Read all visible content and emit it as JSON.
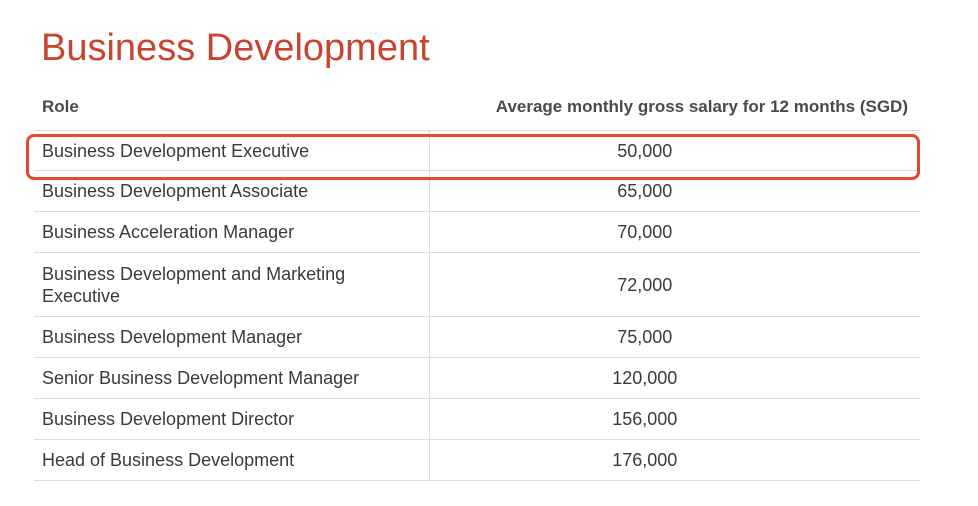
{
  "title": "Business Development",
  "table": {
    "headers": {
      "role": "Role",
      "salary": "Average monthly gross salary for 12 months (SGD)"
    },
    "rows": [
      {
        "role": "Business Development Executive",
        "salary": "50,000",
        "highlighted": true
      },
      {
        "role": "Business Development Associate",
        "salary": "65,000"
      },
      {
        "role": "Business Acceleration Manager",
        "salary": "70,000"
      },
      {
        "role": "Business Development and Marketing Executive",
        "salary": "72,000"
      },
      {
        "role": "Business Development Manager",
        "salary": "75,000"
      },
      {
        "role": "Senior Business Development Manager",
        "salary": "120,000"
      },
      {
        "role": "Business Development Director",
        "salary": "156,000"
      },
      {
        "role": "Head of Business Development",
        "salary": "176,000"
      }
    ]
  },
  "colors": {
    "title": "#c9442f",
    "highlight_border": "#e14a30",
    "row_divider": "#dcdcdc"
  }
}
